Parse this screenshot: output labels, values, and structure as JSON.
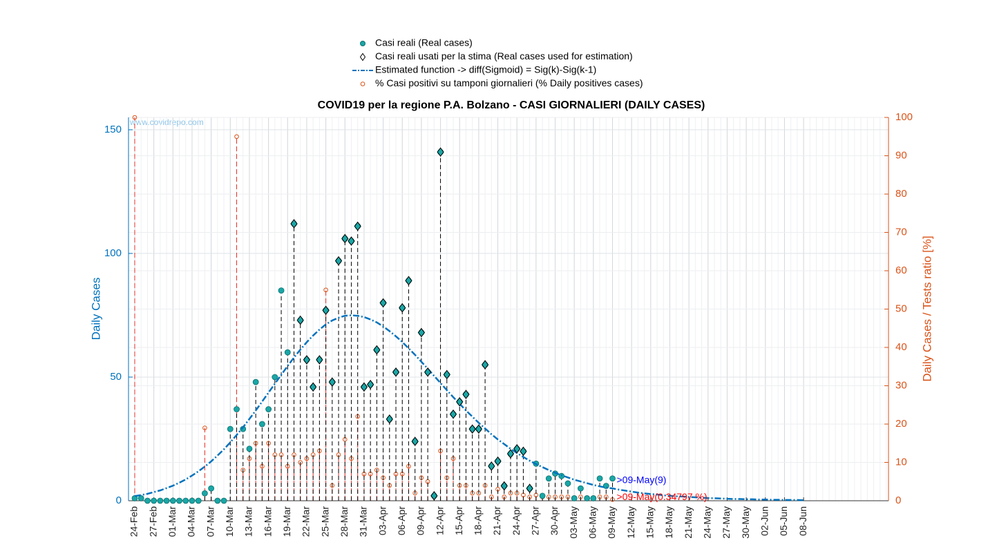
{
  "chart_data": {
    "type": "line",
    "title": "COVID19 per la regione P.A. Bolzano - CASI GIORNALIERI (DAILY CASES)",
    "watermark": "www.covidrepo.com",
    "ylabel": "Daily Cases",
    "y2label": "Daily Cases / Tests ratio [%]",
    "ylim": [
      0,
      155
    ],
    "yticks": [
      0,
      50,
      100,
      150
    ],
    "y2lim": [
      0,
      100
    ],
    "y2ticks": [
      0,
      10,
      20,
      30,
      40,
      50,
      60,
      70,
      80,
      90,
      100
    ],
    "grid": true,
    "legend": "top",
    "categories": [
      "24-Feb",
      null,
      null,
      "27-Feb",
      null,
      null,
      "01-Mar",
      null,
      null,
      "04-Mar",
      null,
      null,
      "07-Mar",
      null,
      null,
      "10-Mar",
      null,
      null,
      "13-Mar",
      null,
      null,
      "16-Mar",
      null,
      null,
      "19-Mar",
      null,
      null,
      "22-Mar",
      null,
      null,
      "25-Mar",
      null,
      null,
      "28-Mar",
      null,
      null,
      "31-Mar",
      null,
      null,
      "03-Apr",
      null,
      null,
      "06-Apr",
      null,
      null,
      "09-Apr",
      null,
      null,
      "12-Apr",
      null,
      null,
      "15-Apr",
      null,
      null,
      "18-Apr",
      null,
      null,
      "21-Apr",
      null,
      null,
      "24-Apr",
      null,
      null,
      "27-Apr",
      null,
      null,
      "30-Apr",
      null,
      null,
      "03-May",
      null,
      null,
      "06-May",
      null,
      null,
      "09-May",
      null,
      null,
      "12-May",
      null,
      null,
      "15-May",
      null,
      null,
      "18-May",
      null,
      null,
      "21-May",
      null,
      null,
      "24-May",
      null,
      null,
      "27-May",
      null,
      null,
      "30-May",
      null,
      null,
      "02-Jun",
      null,
      null,
      "05-Jun",
      null,
      null,
      "08-Jun"
    ],
    "series": [
      {
        "name": "Casi reali (Real cases)",
        "type": "dot",
        "color": "#1aa6a6",
        "values": [
          1,
          1,
          0,
          0,
          0,
          0,
          0,
          0,
          0,
          0,
          0,
          3,
          5,
          0,
          0,
          29,
          37,
          29,
          21,
          48,
          31,
          37,
          50,
          85,
          60,
          112,
          73,
          57,
          46,
          57,
          77,
          48,
          97,
          106,
          105,
          111,
          46,
          47,
          61,
          80,
          33,
          52,
          78,
          89,
          24,
          68,
          52,
          2,
          141,
          51,
          35,
          40,
          43,
          29,
          29,
          55,
          14,
          16,
          6,
          19,
          21,
          20,
          5,
          15,
          2,
          9,
          11,
          10,
          7,
          1,
          5,
          1,
          1,
          9,
          6,
          9,
          null,
          null,
          null,
          null,
          null,
          null,
          null,
          null,
          null,
          null,
          null,
          null,
          null,
          null,
          null,
          null,
          null,
          null,
          null,
          null,
          null,
          null,
          null,
          null,
          null,
          null,
          null,
          null,
          null,
          null
        ]
      },
      {
        "name": "Casi reali usati per la stima (Real cases used for estimation)",
        "type": "diamond",
        "color": "#1aa6a6",
        "values": [
          null,
          null,
          null,
          null,
          null,
          null,
          null,
          null,
          null,
          null,
          null,
          null,
          null,
          null,
          null,
          null,
          null,
          null,
          null,
          null,
          null,
          null,
          null,
          null,
          null,
          112,
          73,
          57,
          46,
          57,
          77,
          48,
          97,
          106,
          105,
          111,
          46,
          47,
          61,
          80,
          33,
          52,
          78,
          89,
          24,
          68,
          52,
          2,
          141,
          51,
          35,
          40,
          43,
          29,
          29,
          55,
          14,
          16,
          6,
          19,
          21,
          20,
          5,
          null,
          null,
          null,
          null,
          null,
          null,
          null,
          null,
          null,
          null,
          null,
          null,
          null,
          null,
          null,
          null,
          null,
          null,
          null,
          null,
          null,
          null,
          null,
          null,
          null,
          null,
          null,
          null,
          null,
          null,
          null,
          null,
          null,
          null,
          null,
          null,
          null,
          null,
          null,
          null,
          null,
          null,
          null
        ]
      },
      {
        "name": "Estimated function -> diff(Sigmoid) = Sig(k)-Sig(k-1)",
        "type": "curve",
        "color": "#0072bd",
        "values": [
          1.9,
          2.3,
          2.8,
          3.5,
          4.2,
          5.1,
          6.1,
          7.3,
          8.6,
          10.2,
          11.9,
          13.8,
          15.9,
          18.3,
          20.8,
          23.6,
          26.6,
          29.7,
          33.1,
          36.5,
          40.1,
          43.7,
          47.3,
          50.9,
          54.5,
          57.9,
          61.1,
          64.1,
          66.8,
          69.2,
          71.3,
          72.9,
          74.0,
          74.8,
          75,
          74.8,
          74.3,
          73.3,
          72.1,
          70.5,
          68.6,
          66.5,
          64.2,
          61.6,
          59.0,
          56.2,
          53.4,
          50.5,
          47.6,
          44.7,
          41.9,
          39.2,
          36.5,
          34.0,
          31.5,
          29.2,
          26.9,
          24.8,
          22.9,
          21.0,
          19.3,
          17.7,
          16.2,
          14.8,
          13.6,
          12.4,
          11.3,
          10.3,
          9.4,
          8.5,
          7.8,
          7.1,
          6.4,
          5.8,
          5.3,
          5.0,
          4.5,
          4.1,
          3.7,
          3.3,
          3.0,
          2.7,
          2.5,
          2.2,
          2.0,
          1.8,
          1.7,
          1.5,
          1.4,
          1.2,
          1.1,
          1.0,
          0.9,
          0.8,
          0.7,
          0.7,
          0.6,
          0.6,
          0.5,
          0.5,
          0.4,
          0.4,
          0.3,
          0.3,
          0.3,
          0.2
        ]
      },
      {
        "name": "% Casi positivi su tamponi giornalieri (% Daily positives cases)",
        "type": "circle",
        "color": "#d95319",
        "axis": "y2",
        "values": [
          100,
          null,
          null,
          null,
          null,
          null,
          null,
          null,
          null,
          null,
          null,
          19,
          null,
          null,
          null,
          null,
          95,
          8,
          11,
          15,
          9,
          15,
          12,
          12,
          9,
          12,
          10,
          11,
          12,
          13,
          55,
          4,
          12,
          16,
          11,
          22,
          7,
          7,
          8,
          6,
          4,
          7,
          7,
          9,
          2,
          6,
          5,
          1,
          13,
          6,
          11,
          4,
          4,
          2,
          2,
          4,
          1,
          3,
          1,
          2,
          2,
          1.5,
          1,
          1.5,
          1,
          1,
          1,
          1,
          1,
          0.5,
          1,
          0.5,
          0.5,
          1,
          1,
          0.3,
          null,
          null,
          null,
          null,
          null,
          null,
          null,
          null,
          null,
          null,
          null,
          null,
          null,
          null,
          null,
          null,
          null,
          null,
          null,
          null,
          null,
          null,
          null,
          null,
          null,
          null,
          null,
          null,
          null,
          null
        ]
      }
    ],
    "annotations": [
      {
        "text": ">09-May(9)",
        "color": "#0000ff"
      },
      {
        "text": ">09-May(0.34797 %)",
        "color": "#ff0000"
      }
    ]
  }
}
